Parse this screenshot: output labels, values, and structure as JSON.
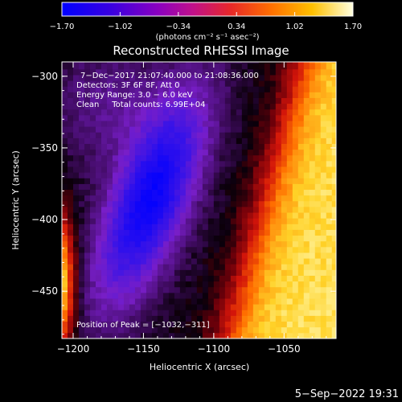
{
  "chart_data": {
    "type": "heatmap",
    "title": "Reconstructed RHESSI Image",
    "xlabel": "Heliocentric X (arcsec)",
    "ylabel": "Heliocentric Y (arcsec)",
    "xlim": [
      -1208,
      -1013
    ],
    "ylim": [
      -483,
      -290
    ],
    "x_ticks": [
      -1200,
      -1150,
      -1100,
      -1050
    ],
    "x_tick_labels": [
      "−1200",
      "−1150",
      "−1100",
      "−1050"
    ],
    "y_ticks": [
      -300,
      -350,
      -400,
      -450
    ],
    "y_tick_labels": [
      "−300",
      "−350",
      "−400",
      "−450"
    ],
    "colorbar": {
      "min": -1.7,
      "max": 1.7,
      "ticks": [
        -1.7,
        -1.02,
        -0.34,
        0.34,
        1.02,
        1.7
      ],
      "tick_labels": [
        "−1.70",
        "−1.02",
        "−0.34",
        "0.34",
        "1.02",
        "1.70"
      ],
      "unit_label": "(photons cm⁻² s⁻¹ asec⁻²)"
    },
    "annotations": [
      "7−Dec−2017 21:07:40.000 to 21:08:36.000",
      "Detectors: 3F 6F 8F, Att 0",
      "Energy Range: 3.0 − 6.0 keV",
      "Clean     Total counts: 6.99E+04"
    ],
    "peak_label": "Position of Peak = [−1032,−311]",
    "peak": [
      -1032,
      -311
    ]
  },
  "footer_timestamp": "5−Sep−2022 19:31"
}
